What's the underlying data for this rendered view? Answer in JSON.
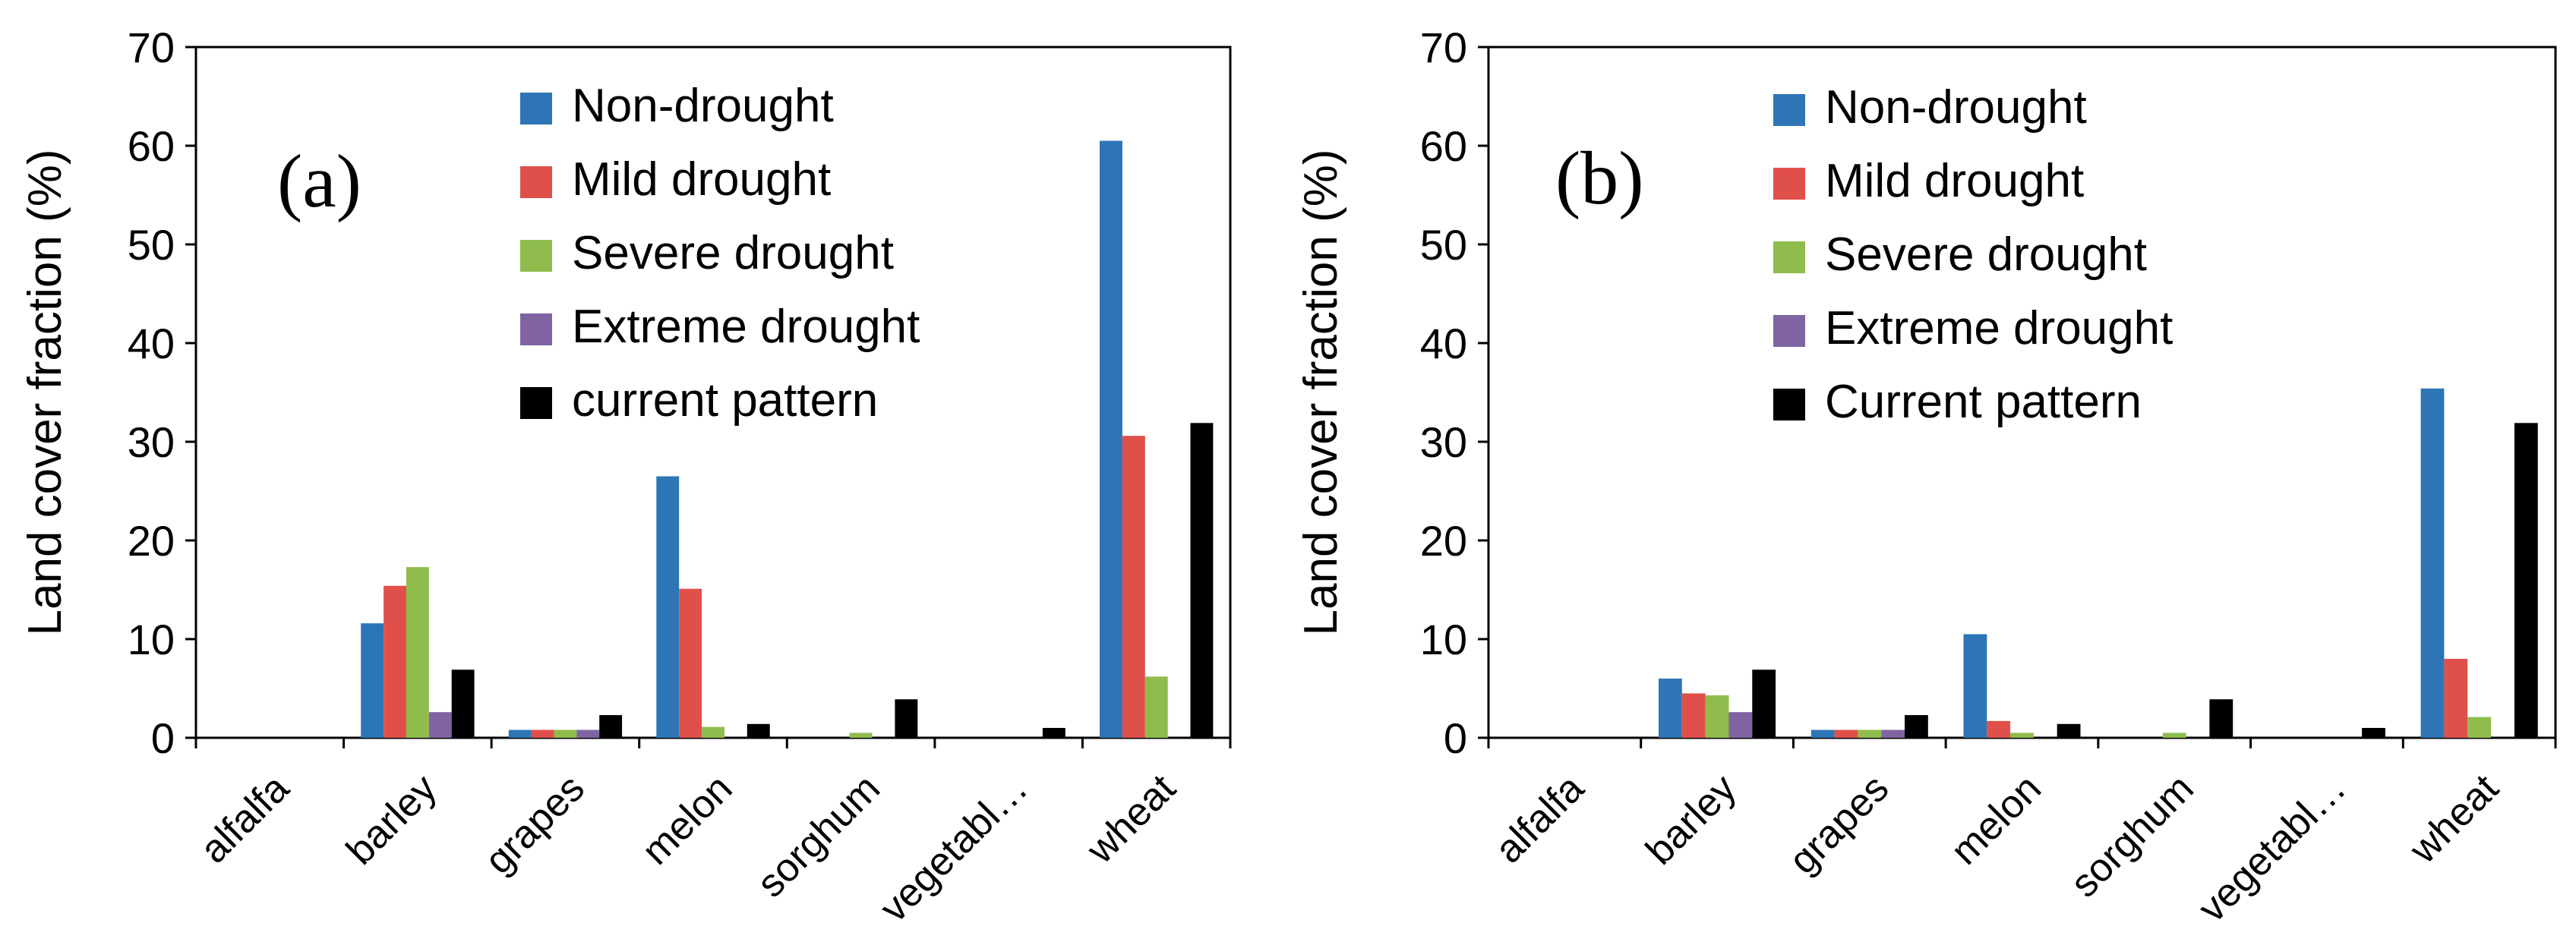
{
  "chart_data": [
    {
      "type": "bar",
      "panel_label": "(a)",
      "ylabel": "Land cover fraction (%)",
      "xlabel": "",
      "ylim": [
        0,
        70
      ],
      "yticks": [
        "0",
        "10",
        "20",
        "30",
        "40",
        "50",
        "60",
        "70"
      ],
      "grid": false,
      "legend_position": "top-center",
      "categories": [
        "alfalfa",
        "barley",
        "grapes",
        "melon",
        "sorghum",
        "vegetabl…",
        "wheat"
      ],
      "series": [
        {
          "name": "Non-drought",
          "color": "#2e75b6",
          "values": [
            0,
            11.6,
            0.8,
            26.5,
            0,
            0,
            60.5
          ]
        },
        {
          "name": "Mild drought",
          "color": "#e0504b",
          "values": [
            0,
            15.4,
            0.8,
            15.1,
            0,
            0,
            30.6
          ]
        },
        {
          "name": "Severe drought",
          "color": "#8fbc4d",
          "values": [
            0,
            17.3,
            0.8,
            1.1,
            0.5,
            0,
            6.2
          ]
        },
        {
          "name": "Extreme drought",
          "color": "#8064a2",
          "values": [
            0,
            2.6,
            0.8,
            0,
            0,
            0,
            0
          ]
        },
        {
          "name": "current pattern",
          "color": "#000000",
          "values": [
            0,
            6.9,
            2.3,
            1.4,
            3.9,
            1.0,
            31.9
          ]
        }
      ]
    },
    {
      "type": "bar",
      "panel_label": "(b)",
      "ylabel": "Land cover fraction (%)",
      "xlabel": "",
      "ylim": [
        0,
        70
      ],
      "yticks": [
        "0",
        "10",
        "20",
        "30",
        "40",
        "50",
        "60",
        "70"
      ],
      "grid": false,
      "legend_position": "top-center",
      "categories": [
        "alfalfa",
        "barley",
        "grapes",
        "melon",
        "sorghum",
        "vegetabl…",
        "wheat"
      ],
      "series": [
        {
          "name": "Non-drought",
          "color": "#2e75b6",
          "values": [
            0,
            6.0,
            0.8,
            10.5,
            0,
            0,
            35.4
          ]
        },
        {
          "name": "Mild drought",
          "color": "#e0504b",
          "values": [
            0,
            4.5,
            0.8,
            1.7,
            0,
            0,
            8.0
          ]
        },
        {
          "name": "Severe drought",
          "color": "#8fbc4d",
          "values": [
            0,
            4.3,
            0.8,
            0.5,
            0.5,
            0,
            2.1
          ]
        },
        {
          "name": "Extreme drought",
          "color": "#8064a2",
          "values": [
            0,
            2.6,
            0.8,
            0,
            0,
            0,
            0
          ]
        },
        {
          "name": "Current pattern",
          "color": "#000000",
          "values": [
            0,
            6.9,
            2.3,
            1.4,
            3.9,
            1.0,
            31.9
          ]
        }
      ]
    }
  ]
}
